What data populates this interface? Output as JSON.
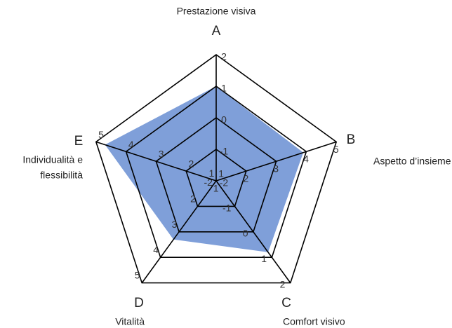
{
  "chart_data": {
    "type": "radar",
    "color": "#7f9fd9",
    "axes": [
      {
        "letter": "A",
        "name": [
          "Prestazione visiva"
        ],
        "lim": [
          -2,
          2
        ],
        "ticks": [
          -2,
          -1,
          0,
          1,
          2
        ],
        "value": 1
      },
      {
        "letter": "B",
        "name": [
          "Aspetto d’insieme"
        ],
        "lim": [
          1,
          5
        ],
        "ticks": [
          1,
          2,
          3,
          4,
          5
        ],
        "value": 3.9
      },
      {
        "letter": "C",
        "name": [
          "Comfort visivo"
        ],
        "lim": [
          -2,
          2
        ],
        "ticks": [
          -2,
          -1,
          0,
          1,
          2
        ],
        "value": 0.8
      },
      {
        "letter": "D",
        "name": [
          "Vitalità"
        ],
        "lim": [
          1,
          5
        ],
        "ticks": [
          1,
          2,
          3,
          4,
          5
        ],
        "value": 3.3
      },
      {
        "letter": "E",
        "name": [
          "Individualità e",
          "flessibilità"
        ],
        "lim": [
          1,
          5
        ],
        "ticks": [
          1,
          2,
          3,
          4,
          5
        ],
        "value": 4.7
      }
    ]
  }
}
